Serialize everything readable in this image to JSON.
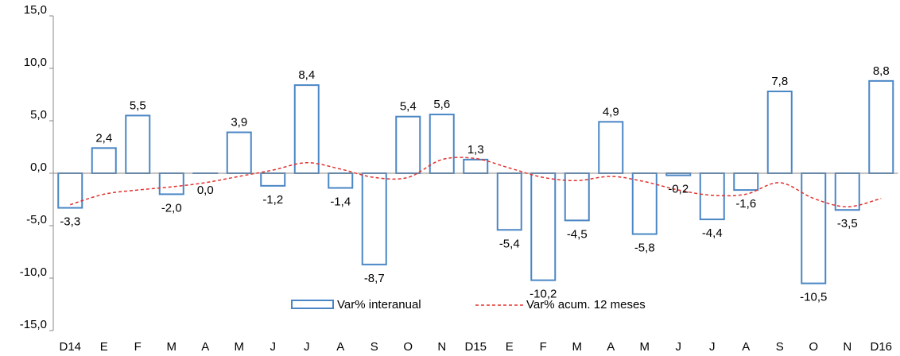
{
  "chart_data": {
    "type": "bar",
    "title": "",
    "xlabel": "",
    "ylabel": "",
    "ylim": [
      -15,
      15
    ],
    "y_ticks": [
      15,
      10,
      5,
      0,
      -5,
      -10,
      -15
    ],
    "y_tick_labels": [
      "15,0",
      "10,0",
      "5,0",
      "0,0",
      "-5,0",
      "-10,0",
      "-15,0"
    ],
    "grid": false,
    "categories": [
      "D14",
      "E",
      "F",
      "M",
      "A",
      "M",
      "J",
      "J",
      "A",
      "S",
      "O",
      "N",
      "D15",
      "E",
      "F",
      "M",
      "A",
      "M",
      "J",
      "J",
      "A",
      "S",
      "O",
      "N",
      "D16"
    ],
    "series": [
      {
        "name": "Var% interanual",
        "type": "bar",
        "values": [
          -3.3,
          2.4,
          5.5,
          -2.0,
          0.0,
          3.9,
          -1.2,
          8.4,
          -1.4,
          -8.7,
          5.4,
          5.6,
          1.3,
          -5.4,
          -10.2,
          -4.5,
          4.9,
          -5.8,
          -0.2,
          -4.4,
          -1.6,
          7.8,
          -10.5,
          -3.5,
          8.8
        ],
        "labels": [
          "-3,3",
          "2,4",
          "5,5",
          "-2,0",
          "0,0",
          "3,9",
          "-1,2",
          "8,4",
          "-1,4",
          "-8,7",
          "5,4",
          "5,6",
          "1,3",
          "-5,4",
          "-10,2",
          "-4,5",
          "4,9",
          "-5,8",
          "-0,2",
          "-4,4",
          "-1,6",
          "7,8",
          "-10,5",
          "-3,5",
          "8,8"
        ],
        "color": "#4a86c5",
        "fill": "#ffffff"
      },
      {
        "name": "Var% acum. 12 meses",
        "type": "line",
        "style": "dashed",
        "color": "#e0322f",
        "values": [
          -3.0,
          -2.0,
          -1.6,
          -1.3,
          -0.9,
          -0.3,
          0.3,
          1.0,
          0.4,
          -0.4,
          -0.4,
          1.3,
          1.4,
          0.5,
          -0.4,
          -0.7,
          -0.3,
          -0.8,
          -1.6,
          -2.1,
          -2.0,
          -0.9,
          -2.4,
          -3.2,
          -2.4
        ]
      }
    ],
    "legend": {
      "position": "bottom-center",
      "entries": [
        "Var% interanual",
        "Var% acum. 12 meses"
      ]
    }
  }
}
